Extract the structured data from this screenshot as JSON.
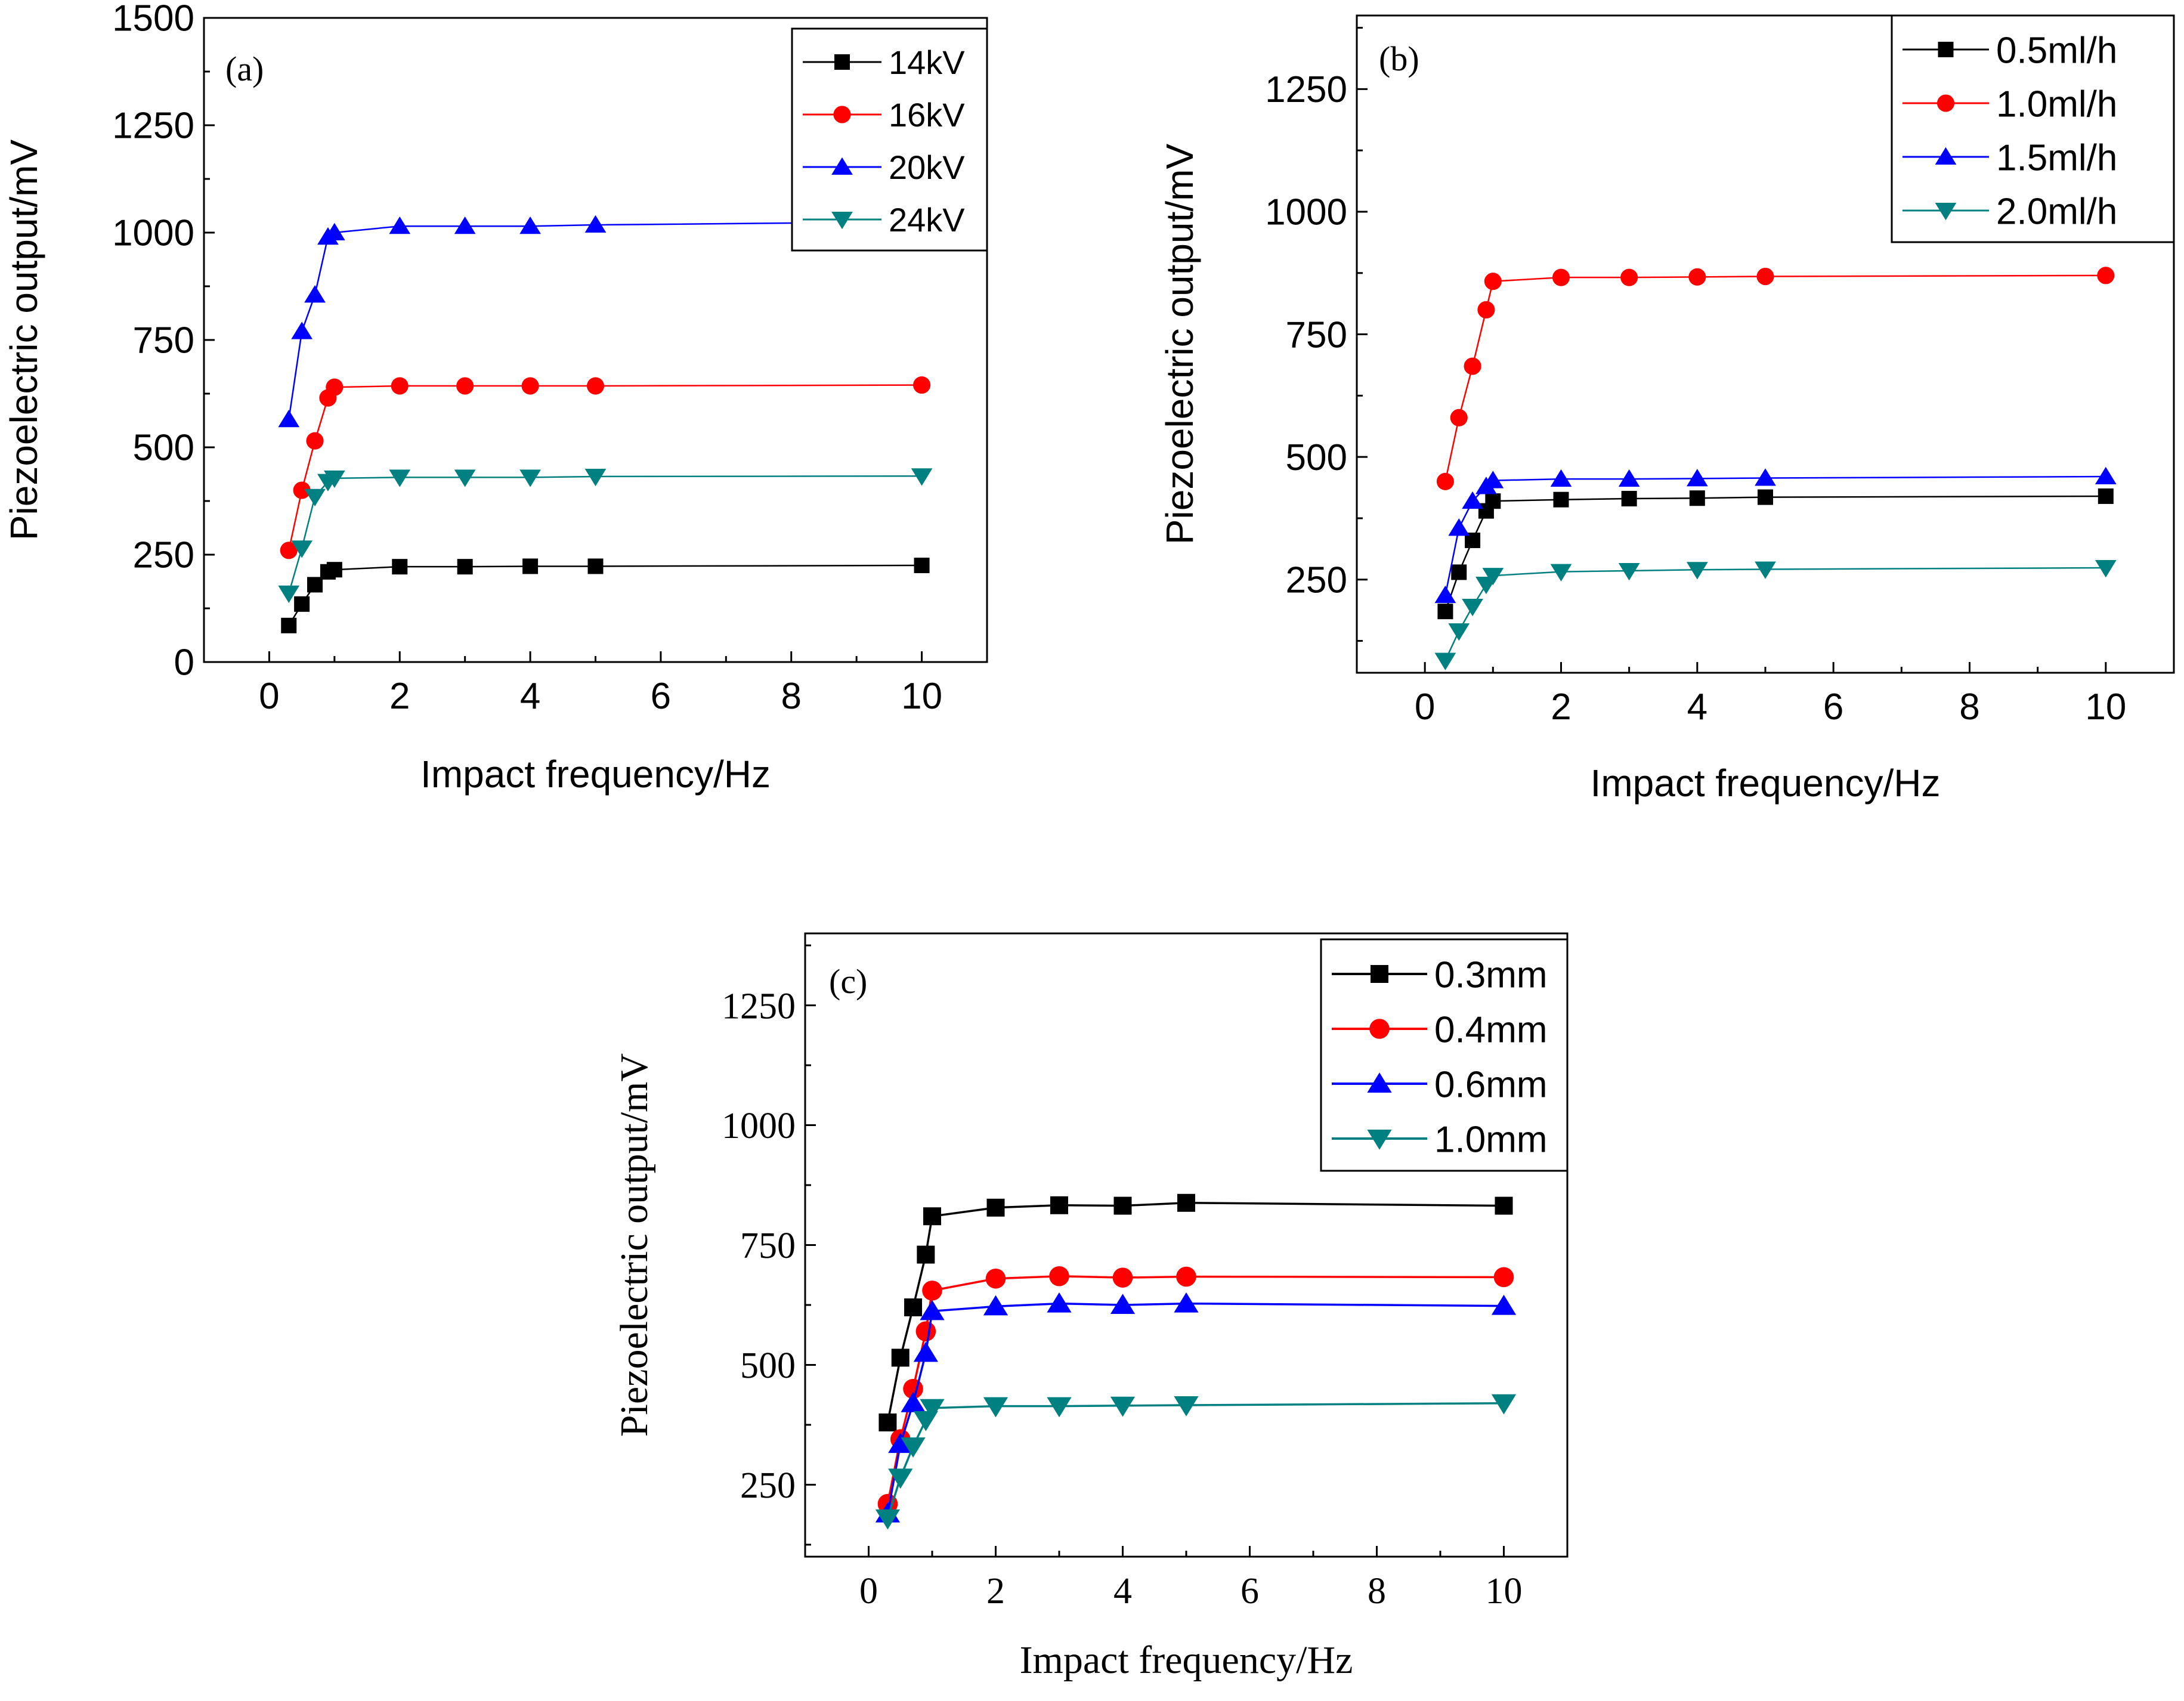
{
  "chart_data": [
    {
      "type": "line",
      "panel_label": "(a)",
      "xlabel": "Impact frequency/Hz",
      "ylabel": "Piezoelectric output/mV",
      "xlim": [
        -1,
        11
      ],
      "ylim": [
        0,
        1500
      ],
      "xticks": [
        0,
        2,
        4,
        6,
        8,
        10
      ],
      "yticks": [
        0,
        250,
        500,
        750,
        1000,
        1250,
        1500
      ],
      "grid": false,
      "legend": "top-right",
      "x": [
        0.3,
        0.5,
        0.7,
        0.9,
        1,
        2,
        3,
        4,
        5,
        10
      ],
      "series": [
        {
          "name": "14kV",
          "marker": "square",
          "color": "#000000",
          "values": [
            85,
            135,
            180,
            210,
            215,
            222,
            222,
            223,
            223,
            225
          ]
        },
        {
          "name": "16kV",
          "marker": "circle",
          "color": "#ff0000",
          "values": [
            260,
            400,
            515,
            615,
            640,
            643,
            643,
            643,
            643,
            645
          ]
        },
        {
          "name": "20kV",
          "marker": "triangle-up",
          "color": "#0000ff",
          "values": [
            565,
            770,
            855,
            990,
            1000,
            1015,
            1015,
            1015,
            1018,
            1025
          ]
        },
        {
          "name": "24kV",
          "marker": "triangle-down",
          "color": "#008080",
          "values": [
            160,
            265,
            385,
            420,
            428,
            430,
            430,
            430,
            432,
            433
          ]
        }
      ]
    },
    {
      "type": "line",
      "panel_label": "(b)",
      "xlabel": "Impact frequency/Hz",
      "ylabel": "Piezoelectric output/mV",
      "xlim": [
        -1,
        11
      ],
      "ylim": [
        60,
        1400
      ],
      "xticks": [
        0,
        2,
        4,
        6,
        8,
        10
      ],
      "yticks": [
        250,
        500,
        750,
        1000,
        1250
      ],
      "grid": false,
      "legend": "top-right",
      "x": [
        0.3,
        0.5,
        0.7,
        0.9,
        1,
        2,
        3,
        4,
        5,
        10
      ],
      "series": [
        {
          "name": "0.5ml/h",
          "marker": "square",
          "color": "#000000",
          "values": [
            185,
            265,
            330,
            390,
            410,
            413,
            415,
            416,
            418,
            420
          ]
        },
        {
          "name": "1.0ml/h",
          "marker": "circle",
          "color": "#ff0000",
          "values": [
            450,
            580,
            685,
            800,
            858,
            866,
            866,
            867,
            868,
            870
          ]
        },
        {
          "name": "1.5ml/h",
          "marker": "triangle-up",
          "color": "#0000ff",
          "values": [
            218,
            355,
            410,
            440,
            452,
            455,
            455,
            456,
            457,
            460
          ]
        },
        {
          "name": "2.0ml/h",
          "marker": "triangle-down",
          "color": "#008080",
          "values": [
            85,
            145,
            195,
            240,
            258,
            266,
            268,
            270,
            271,
            274
          ]
        }
      ]
    },
    {
      "type": "line",
      "panel_label": "(c)",
      "xlabel": "Impact frequency/Hz",
      "ylabel": "Piezoelectric output/mV",
      "xlim": [
        -1,
        11
      ],
      "ylim": [
        100,
        1400
      ],
      "xticks": [
        0,
        2,
        4,
        6,
        8,
        10
      ],
      "yticks": [
        250,
        500,
        750,
        1000,
        1250
      ],
      "grid": false,
      "legend": "top-right",
      "x": [
        0.3,
        0.5,
        0.7,
        0.9,
        1,
        2,
        3,
        4,
        5,
        10
      ],
      "series": [
        {
          "name": "0.3mm",
          "marker": "square",
          "color": "#000000",
          "values": [
            380,
            515,
            620,
            730,
            810,
            828,
            833,
            832,
            838,
            832
          ]
        },
        {
          "name": "0.4mm",
          "marker": "circle",
          "color": "#ff0000",
          "values": [
            210,
            345,
            450,
            570,
            655,
            680,
            685,
            682,
            684,
            683
          ]
        },
        {
          "name": "0.6mm",
          "marker": "triangle-up",
          "color": "#0000ff",
          "values": [
            190,
            335,
            420,
            525,
            612,
            622,
            628,
            625,
            628,
            623
          ]
        },
        {
          "name": "1.0mm",
          "marker": "triangle-down",
          "color": "#008080",
          "values": [
            180,
            265,
            330,
            385,
            410,
            414,
            414,
            415,
            416,
            420
          ]
        }
      ]
    }
  ]
}
